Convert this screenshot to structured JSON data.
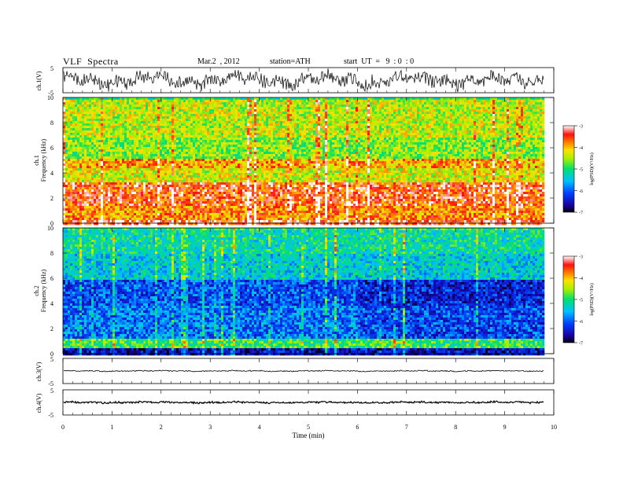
{
  "header": {
    "title": "VLF  Spectra",
    "date": "Mar.2  , 2012",
    "station": "station=ATH",
    "start": "start  UT  =   9  : 0  : 0"
  },
  "chart_data": [
    {
      "type": "line",
      "panel": "ch1-waveform",
      "ylabel": "ch.1(V)",
      "ylim": [
        -5,
        5
      ],
      "yticks": [
        "5",
        "-5"
      ],
      "x_range_min": [
        0,
        9.8
      ],
      "description_series": "dense oscillating waveform with amplitude roughly 1.5 V to 4.5 V"
    },
    {
      "type": "heatmap",
      "panel": "ch1-spectrogram",
      "ylabel": "Frequency  (kHz)",
      "ylabel_prefix": "ch.1",
      "ylim": [
        0,
        10
      ],
      "yticks": [
        "0",
        "2",
        "4",
        "6",
        "8",
        "10"
      ],
      "colorbar": {
        "label": "log(PSD)(V²/Hz)",
        "range": [
          -7,
          -3
        ],
        "ticks": [
          "-3",
          "-4",
          "-5",
          "-6",
          "-7"
        ]
      },
      "bands_khz": [
        {
          "from": 0.0,
          "to": 0.4,
          "level": -3.4
        },
        {
          "from": 0.4,
          "to": 1.4,
          "level": -3.8
        },
        {
          "from": 1.4,
          "to": 3.4,
          "level": -3.5
        },
        {
          "from": 3.4,
          "to": 4.4,
          "level": -4.3
        },
        {
          "from": 4.4,
          "to": 5.2,
          "level": -3.9
        },
        {
          "from": 5.2,
          "to": 7.0,
          "level": -4.6
        },
        {
          "from": 7.0,
          "to": 10.0,
          "level": -4.4
        }
      ]
    },
    {
      "type": "heatmap",
      "panel": "ch2-spectrogram",
      "ylabel": "Frequency  (kHz)",
      "ylabel_prefix": "ch.2",
      "ylim": [
        0,
        10
      ],
      "yticks": [
        "0",
        "2",
        "4",
        "6",
        "8",
        "10"
      ],
      "colorbar": {
        "label": "log(PSD)(V²/Hz)",
        "range": [
          -7,
          -3
        ],
        "ticks": [
          "-3",
          "-4",
          "-5",
          "-6",
          "-7"
        ]
      },
      "bands_khz": [
        {
          "from": 0.0,
          "to": 0.6,
          "level": -6.5
        },
        {
          "from": 0.6,
          "to": 1.2,
          "level": -4.9
        },
        {
          "from": 1.2,
          "to": 4.0,
          "level": -5.9
        },
        {
          "from": 4.0,
          "to": 6.0,
          "level": -6.1
        },
        {
          "from": 6.0,
          "to": 8.0,
          "level": -5.4
        },
        {
          "from": 8.0,
          "to": 10.0,
          "level": -5.2
        }
      ]
    },
    {
      "type": "line",
      "panel": "ch3-waveform",
      "ylabel": "ch.3(V)",
      "ylim": [
        -5,
        5
      ],
      "yticks": [
        "5",
        "-5"
      ],
      "description_series": "near-flat trace around 0 V"
    },
    {
      "type": "line",
      "panel": "ch4-waveform",
      "ylabel": "ch.4(V)",
      "ylim": [
        -5,
        5
      ],
      "yticks": [
        "5",
        "-5"
      ],
      "description_series": "thick near-flat trace around 0 V"
    }
  ],
  "x_axis": {
    "label": "Time  (min)",
    "xlim": [
      0,
      10
    ],
    "ticks": [
      "0",
      "1",
      "2",
      "3",
      "4",
      "5",
      "6",
      "7",
      "8",
      "9",
      "10"
    ],
    "data_end": 9.8
  }
}
